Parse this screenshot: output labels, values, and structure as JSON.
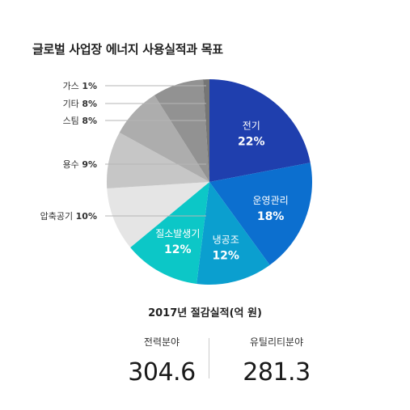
{
  "chart_data": {
    "type": "pie",
    "title": "글로벌 사업장 에너지 사용실적과 목표",
    "slices": [
      {
        "label": "전기",
        "value": 22,
        "value_label": "22%",
        "color": "#1f3fae",
        "label_position": "inside"
      },
      {
        "label": "운영관리",
        "value": 18,
        "value_label": "18%",
        "color": "#0c6fcf",
        "label_position": "inside"
      },
      {
        "label": "냉공조",
        "value": 12,
        "value_label": "12%",
        "color": "#0b9fcf",
        "label_position": "inside"
      },
      {
        "label": "질소발생기",
        "value": 12,
        "value_label": "12%",
        "color": "#0cc7c7",
        "label_position": "inside"
      },
      {
        "label": "압축공기",
        "value": 10,
        "value_label": "10%",
        "color": "#e5e5e5",
        "label_position": "outside"
      },
      {
        "label": "용수",
        "value": 9,
        "value_label": "9%",
        "color": "#c6c6c6",
        "label_position": "outside"
      },
      {
        "label": "스팀",
        "value": 8,
        "value_label": "8%",
        "color": "#adadad",
        "label_position": "outside"
      },
      {
        "label": "기타",
        "value": 8,
        "value_label": "8%",
        "color": "#929292",
        "label_position": "outside"
      },
      {
        "label": "가스",
        "value": 1,
        "value_label": "1%",
        "color": "#767676",
        "label_position": "outside"
      }
    ]
  },
  "summary": {
    "title": "2017년 절감실적(억 원)",
    "items": [
      {
        "label": "전력분야",
        "value": "304.6"
      },
      {
        "label": "유틸리티분야",
        "value": "281.3"
      }
    ]
  }
}
